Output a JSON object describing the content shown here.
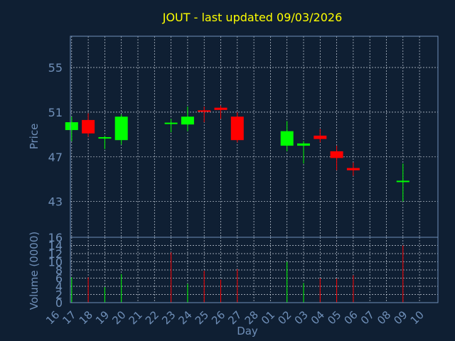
{
  "chart_data": {
    "type": "candlestick",
    "title": "JOUT - last updated 09/03/2026",
    "xlabel": "Day",
    "x_ticks": [
      "16",
      "17",
      "18",
      "19",
      "20",
      "21",
      "22",
      "23",
      "24",
      "25",
      "26",
      "27",
      "28",
      "01",
      "02",
      "03",
      "04",
      "05",
      "06",
      "07",
      "08",
      "09",
      "10"
    ],
    "price_panel": {
      "ylabel": "Price",
      "ylim": [
        39.8,
        57.8
      ],
      "y_ticks": [
        "55",
        "51",
        "47",
        "43"
      ],
      "candles": [
        {
          "day": "17",
          "open": 49.4,
          "high": 50.6,
          "low": 48.4,
          "close": 50.1
        },
        {
          "day": "18",
          "open": 50.3,
          "high": 50.9,
          "low": 48.8,
          "close": 49.1
        },
        {
          "day": "19",
          "open": 48.6,
          "high": 48.9,
          "low": 47.7,
          "close": 48.7
        },
        {
          "day": "20",
          "open": 48.5,
          "high": 50.8,
          "low": 48.1,
          "close": 50.6
        },
        {
          "day": "23",
          "open": 49.9,
          "high": 50.4,
          "low": 49.2,
          "close": 50.0
        },
        {
          "day": "24",
          "open": 49.9,
          "high": 51.5,
          "low": 49.3,
          "close": 50.6
        },
        {
          "day": "25",
          "open": 51.1,
          "high": 51.5,
          "low": 50.1,
          "close": 51.0
        },
        {
          "day": "26",
          "open": 51.4,
          "high": 51.6,
          "low": 50.4,
          "close": 51.2
        },
        {
          "day": "27",
          "open": 50.6,
          "high": 51.0,
          "low": 48.3,
          "close": 48.5
        },
        {
          "day": "02",
          "open": 48.0,
          "high": 50.2,
          "low": 47.5,
          "close": 49.3
        },
        {
          "day": "03",
          "open": 48.0,
          "high": 48.4,
          "low": 46.4,
          "close": 48.2
        },
        {
          "day": "04",
          "open": 48.9,
          "high": 49.5,
          "low": 48.3,
          "close": 48.6
        },
        {
          "day": "05",
          "open": 47.5,
          "high": 48.0,
          "low": 45.8,
          "close": 46.9
        },
        {
          "day": "06",
          "open": 46.0,
          "high": 46.5,
          "low": 45.3,
          "close": 45.8
        },
        {
          "day": "09",
          "open": 44.8,
          "high": 46.4,
          "low": 43.0,
          "close": 44.8
        }
      ]
    },
    "volume_panel": {
      "ylabel": "Volume (0000)",
      "ylim": [
        0,
        16
      ],
      "y_ticks": [
        "16",
        "14",
        "12",
        "10",
        "8",
        "6",
        "4",
        "2",
        "0"
      ],
      "bars": [
        {
          "day": "17",
          "value": 6.2,
          "color": "green"
        },
        {
          "day": "18",
          "value": 6.2,
          "color": "red"
        },
        {
          "day": "19",
          "value": 3.8,
          "color": "green"
        },
        {
          "day": "20",
          "value": 7.0,
          "color": "green"
        },
        {
          "day": "23",
          "value": 12.3,
          "color": "red"
        },
        {
          "day": "24",
          "value": 4.6,
          "color": "green"
        },
        {
          "day": "25",
          "value": 7.8,
          "color": "red"
        },
        {
          "day": "26",
          "value": 5.6,
          "color": "red"
        },
        {
          "day": "27",
          "value": 8.2,
          "color": "red"
        },
        {
          "day": "02",
          "value": 10.0,
          "color": "green"
        },
        {
          "day": "03",
          "value": 4.8,
          "color": "green"
        },
        {
          "day": "04",
          "value": 6.0,
          "color": "red"
        },
        {
          "day": "05",
          "value": 5.9,
          "color": "red"
        },
        {
          "day": "06",
          "value": 6.7,
          "color": "red"
        },
        {
          "day": "09",
          "value": 14.0,
          "color": "red"
        }
      ]
    },
    "colors": {
      "background": "#0f1f33",
      "up": "#00ff00",
      "down": "#ff0000",
      "title": "#ffff00",
      "axis_text": "#6f8fb8",
      "grid": "#c8d0dc",
      "frame": "#6f8fb8"
    },
    "grid": true
  }
}
